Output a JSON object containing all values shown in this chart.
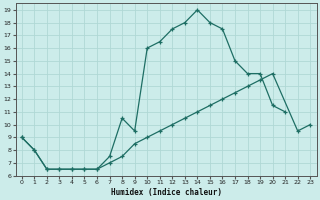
{
  "xlabel": "Humidex (Indice chaleur)",
  "background_color": "#ccecea",
  "line_color": "#1e6e64",
  "grid_color": "#b0d8d5",
  "xlim": [
    -0.5,
    23.5
  ],
  "ylim": [
    6,
    19.5
  ],
  "yticks": [
    6,
    7,
    8,
    9,
    10,
    11,
    12,
    13,
    14,
    15,
    16,
    17,
    18,
    19
  ],
  "xticks": [
    0,
    1,
    2,
    3,
    4,
    5,
    6,
    7,
    8,
    9,
    10,
    11,
    12,
    13,
    14,
    15,
    16,
    17,
    18,
    19,
    20,
    21,
    22,
    23
  ],
  "line1_x": [
    0,
    1,
    2,
    3,
    4,
    5,
    6,
    7,
    8,
    9,
    10,
    11,
    12,
    13,
    14,
    15,
    16,
    17,
    18,
    19,
    20,
    21
  ],
  "line1_y": [
    9,
    8,
    6.5,
    6.5,
    6.5,
    6.5,
    6.5,
    7.5,
    10.5,
    9.5,
    16.0,
    16.5,
    17.5,
    18.0,
    19.0,
    18.0,
    17.5,
    15.0,
    14.0,
    14.0,
    11.5,
    11.0
  ],
  "line2_x": [
    0,
    1,
    2,
    3,
    4,
    5,
    6,
    7,
    8,
    9,
    10,
    11,
    12,
    13,
    14,
    15,
    16,
    17,
    18,
    19,
    20,
    22,
    23
  ],
  "line2_y": [
    9,
    8,
    6.5,
    6.5,
    6.5,
    6.5,
    6.5,
    7.0,
    7.5,
    8.5,
    9.0,
    9.5,
    10.0,
    10.5,
    11.0,
    11.5,
    12.0,
    12.5,
    13.0,
    13.5,
    14.0,
    9.5,
    10.0
  ]
}
